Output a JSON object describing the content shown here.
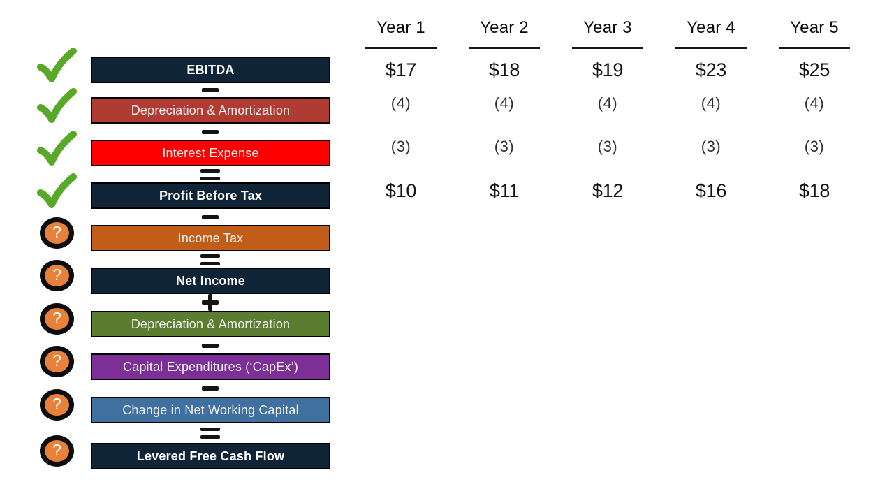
{
  "table": {
    "columns": [
      "Year 1",
      "Year 2",
      "Year 3",
      "Year 4",
      "Year 5"
    ]
  },
  "icons": {
    "check_color": "#58a82a",
    "question_fill": "#e8823b",
    "question_ring": "#0d0d0d",
    "question_glyph": "?"
  },
  "rows": [
    {
      "label": "EBITDA",
      "color": "#0f2436",
      "bold": true,
      "icon": "check",
      "operator_after": "−",
      "values": [
        "$17",
        "$18",
        "$19",
        "$23",
        "$25"
      ]
    },
    {
      "label": "Depreciation & Amortization",
      "color": "#b03b33",
      "bold": false,
      "icon": "check",
      "operator_after": "−",
      "values": [
        "(4)",
        "(4)",
        "(4)",
        "(4)",
        "(4)"
      ]
    },
    {
      "label": "Interest Expense",
      "color": "#ff0000",
      "bold": false,
      "icon": "check",
      "operator_after": "=",
      "values": [
        "(3)",
        "(3)",
        "(3)",
        "(3)",
        "(3)"
      ]
    },
    {
      "label": "Profit Before Tax",
      "color": "#0f2436",
      "bold": true,
      "icon": "check",
      "operator_after": "−",
      "values": [
        "$10",
        "$11",
        "$12",
        "$16",
        "$18"
      ]
    },
    {
      "label": "Income Tax",
      "color": "#c05d18",
      "bold": false,
      "icon": "question",
      "operator_after": "=",
      "values": []
    },
    {
      "label": "Net Income",
      "color": "#0f2436",
      "bold": true,
      "icon": "question",
      "operator_after": "+",
      "values": []
    },
    {
      "label": "Depreciation & Amortization",
      "color": "#5b7d2f",
      "bold": false,
      "icon": "question",
      "operator_after": "−",
      "values": []
    },
    {
      "label": "Capital Expenditures (‘CapEx’)",
      "color": "#7c3097",
      "bold": false,
      "icon": "question",
      "operator_after": "−",
      "values": []
    },
    {
      "label": "Change in Net Working Capital",
      "color": "#40709f",
      "bold": false,
      "icon": "question",
      "operator_after": "=",
      "values": []
    },
    {
      "label": "Levered Free Cash Flow",
      "color": "#0f2436",
      "bold": true,
      "icon": "question",
      "operator_after": null,
      "values": []
    }
  ]
}
